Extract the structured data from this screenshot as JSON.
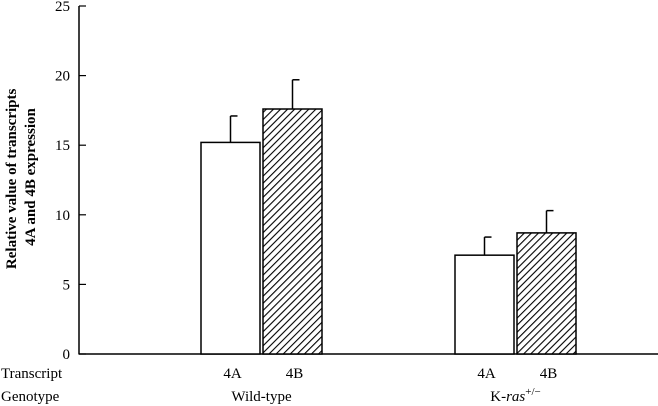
{
  "chart_data": {
    "type": "bar",
    "ylabel": [
      "Relative value of transcripts",
      "4A and 4B expression"
    ],
    "ylim": [
      0,
      25
    ],
    "yticks": [
      0,
      5,
      10,
      15,
      20,
      25
    ],
    "groups": [
      {
        "genotype": "Wild-type",
        "genotype_base": "Wild-type",
        "genotype_italic": "",
        "genotype_sup": "",
        "bars": [
          {
            "transcript": "4A",
            "value": 15.2,
            "error": 1.9
          },
          {
            "transcript": "4B",
            "value": 17.6,
            "error": 2.1
          }
        ]
      },
      {
        "genotype": "K-ras+/−",
        "genotype_base": "K-",
        "genotype_italic": "ras",
        "genotype_sup": "+/−",
        "bars": [
          {
            "transcript": "4A",
            "value": 7.1,
            "error": 1.3
          },
          {
            "transcript": "4B",
            "value": 8.7,
            "error": 1.6
          }
        ]
      }
    ],
    "row_labels": {
      "transcript": "Transcript",
      "genotype": "Genotype"
    },
    "bar_styles": {
      "4A": "white",
      "4B": "diagonal-hatch"
    }
  }
}
